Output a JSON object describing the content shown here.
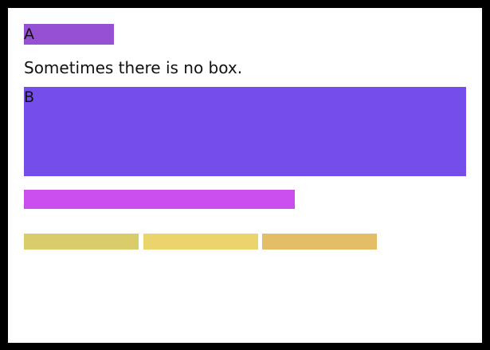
{
  "box_a": {
    "label": "A",
    "color": "#9550d3"
  },
  "text": "Sometimes there is no box.",
  "box_b": {
    "label": "B",
    "color": "#744deb"
  },
  "bar_magenta": {
    "color": "#ca4fee"
  },
  "bars_yellow": [
    {
      "color": "#d8cd6a"
    },
    {
      "color": "#ebd46b"
    },
    {
      "color": "#e3be67"
    }
  ]
}
